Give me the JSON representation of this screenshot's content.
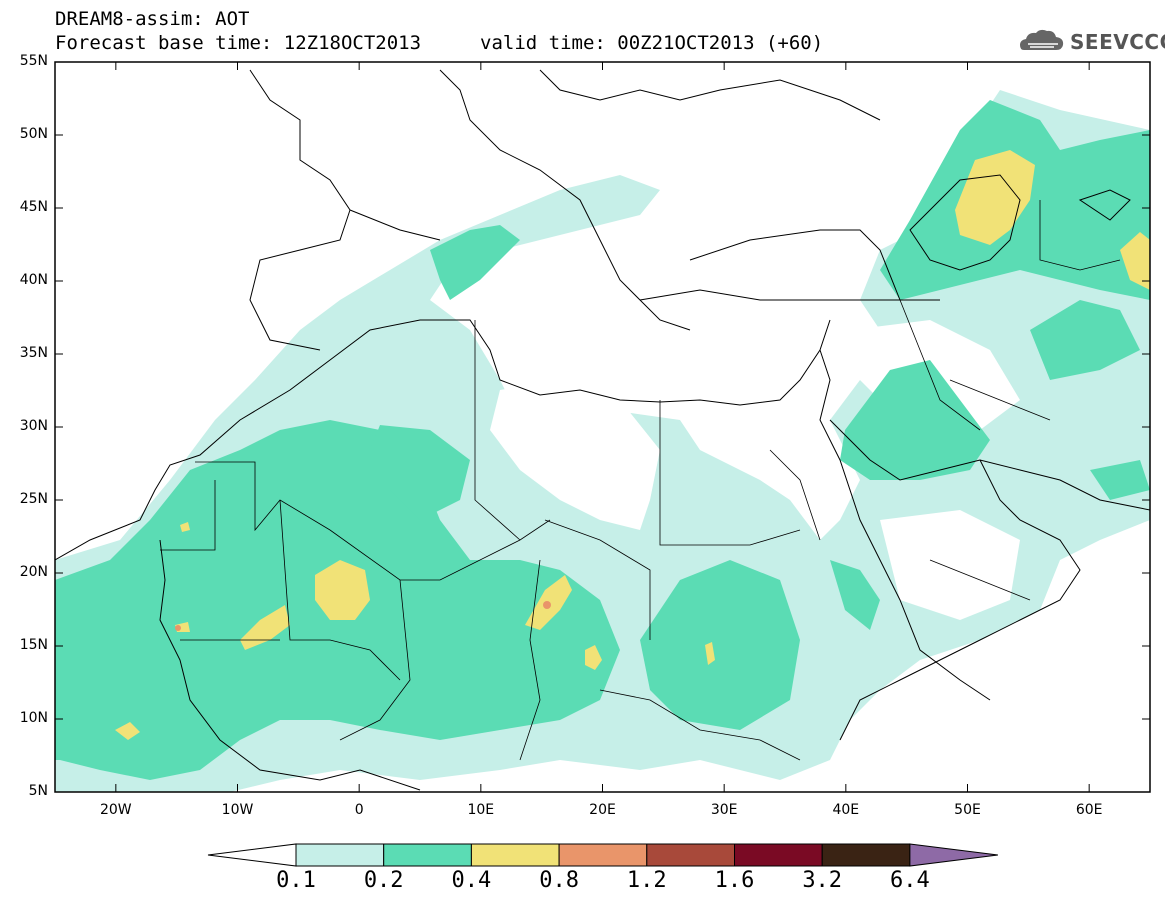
{
  "header": {
    "title": "DREAM8-assim: AOT",
    "base_time": "Forecast base time: 12Z18OCT2013",
    "valid_time": "valid time: 00Z21OCT2013 (+60)",
    "logo_text": "SEEVCCC"
  },
  "map": {
    "lat_ticks": [
      "55N",
      "50N",
      "45N",
      "40N",
      "35N",
      "30N",
      "25N",
      "20N",
      "15N",
      "10N",
      "5N"
    ],
    "lon_ticks": [
      "20W",
      "10W",
      "0",
      "10E",
      "20E",
      "30E",
      "40E",
      "50E",
      "60E"
    ],
    "projection_extent": {
      "lon_min": -25,
      "lon_max": 65,
      "lat_min": 5,
      "lat_max": 55
    }
  },
  "colorbar": {
    "labels": [
      "0.1",
      "0.2",
      "0.4",
      "0.8",
      "1.2",
      "1.6",
      "3.2",
      "6.4"
    ],
    "colors": {
      "below": "#ffffff",
      "c1": "#c6efe8",
      "c2": "#5bdcb4",
      "c3": "#f1e277",
      "c4": "#e9956a",
      "c5": "#a8493a",
      "c6": "#7a0a24",
      "c7": "#3a2314",
      "above": "#8e6aa6"
    }
  }
}
